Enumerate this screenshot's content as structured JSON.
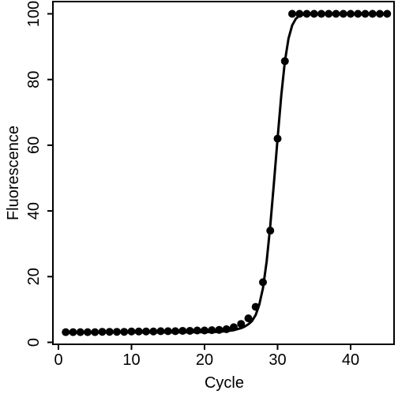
{
  "chart_data": {
    "type": "scatter",
    "title": "",
    "xlabel": "Cycle",
    "ylabel": "Fluorescence",
    "xlim": [
      0,
      46.5
    ],
    "ylim": [
      0,
      100.5
    ],
    "x_ticks": [
      0,
      10,
      20,
      30,
      40
    ],
    "y_ticks": [
      0,
      20,
      40,
      60,
      80,
      100
    ],
    "grid": false,
    "legend": "none",
    "colors": {
      "points": "#000000",
      "curve": "#000000",
      "axes": "#000000",
      "background": "#ffffff"
    },
    "series": [
      {
        "kind": "points",
        "x": [
          1,
          2,
          3,
          4,
          5,
          6,
          7,
          8,
          9,
          10,
          11,
          12,
          13,
          14,
          15,
          16,
          17,
          18,
          19,
          20,
          21,
          22,
          23,
          24,
          25,
          26,
          27,
          28,
          29,
          30,
          31,
          32,
          33,
          34,
          35,
          36,
          37,
          38,
          39,
          40,
          41,
          42,
          43,
          44,
          45
        ],
        "y": [
          3.1,
          3.1,
          3.1,
          3.1,
          3.1,
          3.2,
          3.2,
          3.2,
          3.2,
          3.3,
          3.3,
          3.3,
          3.3,
          3.4,
          3.4,
          3.4,
          3.5,
          3.5,
          3.6,
          3.6,
          3.7,
          3.8,
          4.0,
          4.6,
          5.6,
          7.3,
          10.8,
          18.3,
          34.0,
          62.0,
          85.6,
          100,
          100,
          100,
          100,
          100,
          100,
          100,
          100,
          100,
          100,
          100,
          100,
          100,
          100
        ]
      },
      {
        "kind": "line",
        "x": [
          1,
          5,
          10,
          15,
          20,
          22,
          23,
          24,
          25,
          25.5,
          26,
          26.5,
          27,
          27.5,
          28,
          28.5,
          29,
          29.5,
          30,
          30.5,
          31,
          31.5,
          32,
          32.5,
          33,
          34,
          40,
          45
        ],
        "y": [
          3.0,
          3.0,
          3.0,
          3.0,
          3.1,
          3.2,
          3.4,
          3.7,
          4.3,
          4.8,
          5.5,
          6.5,
          8.3,
          11.5,
          16.5,
          24.5,
          35.5,
          48.5,
          62.0,
          75.0,
          85.5,
          92.5,
          96.5,
          98.5,
          99.5,
          100,
          100,
          100
        ]
      }
    ]
  }
}
